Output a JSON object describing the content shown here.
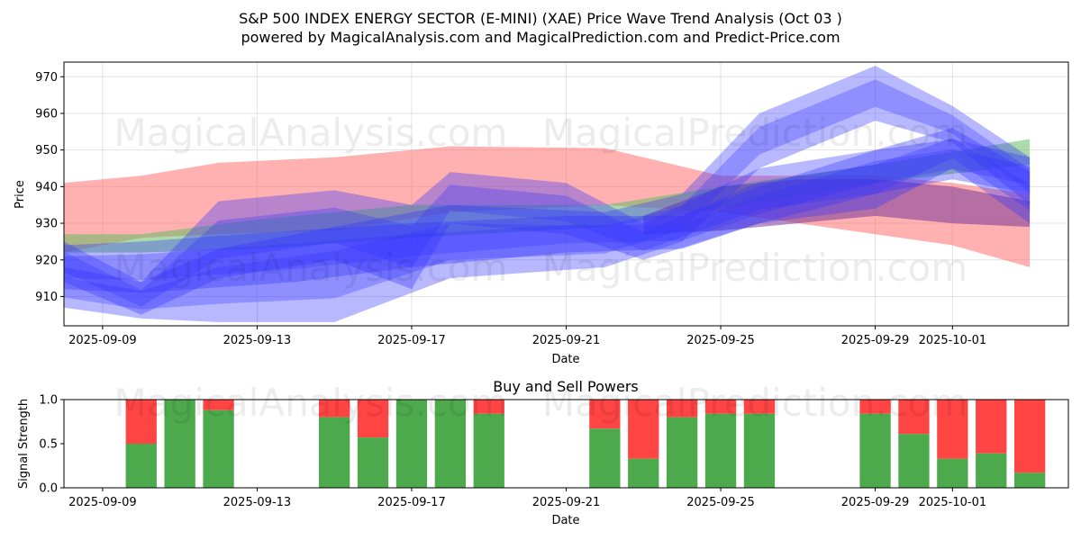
{
  "page": {
    "title_line1": "S&P 500 INDEX ENERGY SECTOR (E-MINI) (XAE) Price Wave Trend Analysis (Oct 03 )",
    "title_line2": "powered by MagicalAnalysis.com and MagicalPrediction.com and Predict-Price.com",
    "watermark_left": "MagicalAnalysis.com",
    "watermark_right": "MagicalPrediction.com"
  },
  "chart_data": [
    {
      "type": "area",
      "title": "",
      "xlabel": "Date",
      "ylabel": "Price",
      "x_range": [
        "2025-09-08",
        "2025-10-04"
      ],
      "ylim": [
        902,
        974
      ],
      "y_ticks": [
        910,
        920,
        930,
        940,
        950,
        960,
        970
      ],
      "x_ticks": [
        "2025-09-09",
        "2025-09-13",
        "2025-09-17",
        "2025-09-21",
        "2025-09-25",
        "2025-09-29",
        "2025-10-01"
      ],
      "grid": true,
      "colors": {
        "red": "#ff7070",
        "green": "#66bb66",
        "blue": "#3333ff",
        "purple": "#7a3a9a"
      },
      "series": [
        {
          "name": "red band",
          "color": "#ff7070",
          "x": [
            "2025-09-08",
            "2025-09-10",
            "2025-09-12",
            "2025-09-15",
            "2025-09-18",
            "2025-09-22",
            "2025-09-25",
            "2025-09-29",
            "2025-10-01",
            "2025-10-03"
          ],
          "upper": [
            941,
            943,
            946.5,
            948,
            951,
            950.5,
            943,
            943,
            941,
            938
          ],
          "lower": [
            922,
            926,
            927,
            928,
            933,
            935,
            933,
            927,
            924,
            918
          ]
        },
        {
          "name": "green band",
          "color": "#66bb66",
          "x": [
            "2025-09-08",
            "2025-09-10",
            "2025-09-13",
            "2025-09-17",
            "2025-09-22",
            "2025-09-25",
            "2025-09-29",
            "2025-10-03"
          ],
          "upper": [
            927,
            927,
            931,
            935,
            935,
            940,
            946,
            953
          ],
          "lower": [
            922,
            922,
            923,
            926,
            929,
            934,
            941,
            946
          ]
        },
        {
          "name": "purple band",
          "color": "#7a3a9a",
          "x": [
            "2025-09-23",
            "2025-09-25",
            "2025-09-27",
            "2025-09-29",
            "2025-10-01",
            "2025-10-03"
          ],
          "upper": [
            932,
            940,
            942,
            942,
            940,
            936
          ],
          "lower": [
            927,
            928,
            930,
            932,
            930,
            929
          ]
        },
        {
          "name": "blue wave 1",
          "color": "#3333ff",
          "x": [
            "2025-09-08",
            "2025-09-10",
            "2025-09-14",
            "2025-09-17",
            "2025-09-21",
            "2025-09-24",
            "2025-09-26",
            "2025-09-29",
            "2025-10-01",
            "2025-10-03"
          ],
          "upper": [
            924,
            925,
            928,
            930,
            932,
            932,
            940,
            950,
            953,
            948
          ],
          "lower": [
            912,
            911,
            914,
            918,
            922,
            923,
            930,
            938,
            942,
            938
          ]
        },
        {
          "name": "blue wave 2",
          "color": "#3333ff",
          "x": [
            "2025-09-08",
            "2025-09-10",
            "2025-09-12",
            "2025-09-15",
            "2025-09-18",
            "2025-09-22",
            "2025-09-24",
            "2025-09-26",
            "2025-09-29",
            "2025-10-01",
            "2025-10-03"
          ],
          "upper": [
            918,
            914,
            923,
            929,
            935,
            933,
            938,
            960,
            973,
            962,
            948
          ],
          "lower": [
            907,
            904,
            903,
            903,
            915,
            918,
            925,
            945,
            958,
            952,
            935
          ]
        },
        {
          "name": "blue wave 3",
          "color": "#3333ff",
          "x": [
            "2025-09-08",
            "2025-09-10",
            "2025-09-12",
            "2025-09-15",
            "2025-09-17",
            "2025-09-18",
            "2025-09-21",
            "2025-09-23",
            "2025-09-26",
            "2025-09-29",
            "2025-10-01",
            "2025-10-03"
          ],
          "upper": [
            925,
            914,
            936,
            939,
            935,
            944,
            941,
            930,
            945,
            950,
            956,
            944
          ],
          "lower": [
            914,
            905,
            915,
            920,
            912,
            930,
            927,
            920,
            930,
            934,
            945,
            930
          ]
        }
      ]
    },
    {
      "type": "bar",
      "title": "Buy and Sell Powers",
      "xlabel": "Date",
      "ylabel": "Signal Strength",
      "x_range": [
        "2025-09-08",
        "2025-10-04"
      ],
      "ylim": [
        0,
        1
      ],
      "y_ticks": [
        "0.0",
        "0.5",
        "1.0"
      ],
      "x_ticks": [
        "2025-09-09",
        "2025-09-13",
        "2025-09-17",
        "2025-09-21",
        "2025-09-25",
        "2025-09-29",
        "2025-10-01"
      ],
      "grid": false,
      "colors": {
        "buy": "#4caa4c",
        "sell": "#ff4444"
      },
      "categories": [
        "2025-09-10",
        "2025-09-11",
        "2025-09-12",
        "2025-09-15",
        "2025-09-16",
        "2025-09-17",
        "2025-09-18",
        "2025-09-19",
        "2025-09-22",
        "2025-09-23",
        "2025-09-24",
        "2025-09-25",
        "2025-09-26",
        "2025-09-29",
        "2025-09-30",
        "2025-10-01",
        "2025-10-02",
        "2025-10-03"
      ],
      "series": [
        {
          "name": "Buy",
          "values": [
            0.5,
            1.0,
            0.88,
            0.8,
            0.57,
            1.0,
            1.0,
            0.84,
            0.67,
            0.33,
            0.8,
            0.84,
            0.84,
            0.84,
            0.61,
            0.33,
            0.39,
            0.17
          ]
        }
      ]
    }
  ]
}
